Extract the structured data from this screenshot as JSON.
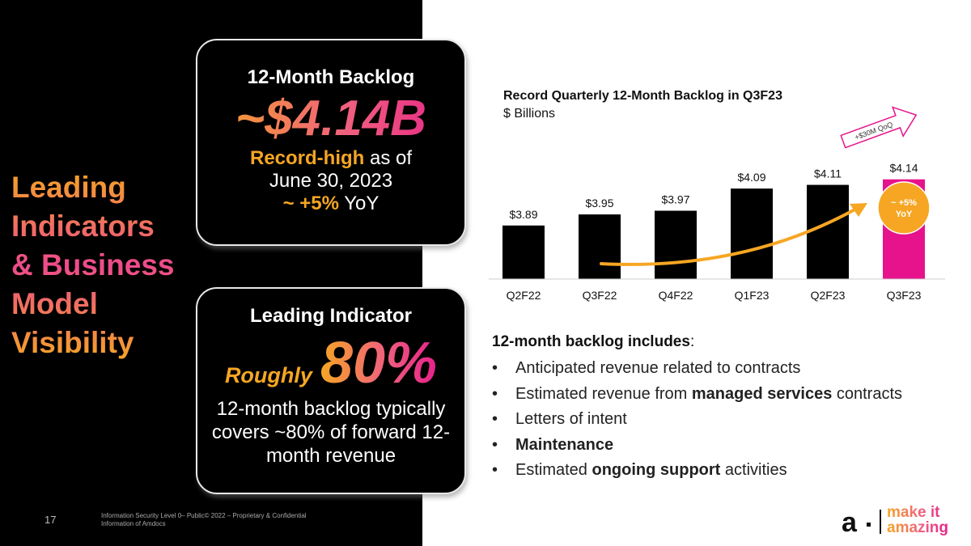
{
  "slide": {
    "title": "Leading\nIndicators\n& Business\nModel\nVisibility",
    "page_number": "17",
    "footer_note": "Information Security Level 0– Public© 2022 – Proprietary & Confidential Information of Amdocs"
  },
  "card_backlog": {
    "heading": "12-Month Backlog",
    "value": "~$4.14B",
    "record_high": "Record-high",
    "as_of": " as of",
    "date_line": "June 30, 2023",
    "yoy_prefix": "~ +5%",
    "yoy_suffix": " YoY"
  },
  "card_indicator": {
    "heading": "Leading Indicator",
    "roughly": "Roughly",
    "percent": "80%",
    "description": "12-month backlog typically covers ~80% of forward 12-month revenue"
  },
  "chart_data": {
    "type": "bar",
    "title": "Record Quarterly 12-Month Backlog in Q3F23",
    "subtitle": "$ Billions",
    "categories": [
      "Q2F22",
      "Q3F22",
      "Q4F22",
      "Q1F23",
      "Q2F23",
      "Q3F23"
    ],
    "values": [
      3.89,
      3.95,
      3.97,
      4.09,
      4.11,
      4.14
    ],
    "value_labels": [
      "$3.89",
      "$3.95",
      "$3.97",
      "$4.09",
      "$4.11",
      "$4.14"
    ],
    "ylim": [
      3.6,
      4.2
    ],
    "bar_colors": [
      "#000000",
      "#000000",
      "#000000",
      "#000000",
      "#000000",
      "#e6138c"
    ],
    "annotations": {
      "qoq_arrow": "+$30M QoQ",
      "yoy_circle_line1": "~ +5%",
      "yoy_circle_line2": "YoY"
    },
    "colors": {
      "arrow": "#f6a623",
      "circle": "#f6a623",
      "highlight": "#e6138c"
    }
  },
  "bullets": {
    "heading_bold": "12-month backlog includes",
    "heading_colon": ":",
    "items": [
      [
        {
          "t": "Anticipated revenue related to contracts",
          "b": false
        }
      ],
      [
        {
          "t": "Estimated revenue from ",
          "b": false
        },
        {
          "t": "managed services",
          "b": true
        },
        {
          "t": " contracts",
          "b": false
        }
      ],
      [
        {
          "t": "Letters of intent",
          "b": false
        }
      ],
      [
        {
          "t": "Maintenance",
          "b": true
        }
      ],
      [
        {
          "t": "Estimated ",
          "b": false
        },
        {
          "t": "ongoing support",
          "b": true
        },
        {
          "t": " activities",
          "b": false
        }
      ]
    ]
  },
  "logo": {
    "mark": "a",
    "text": "make it\namazing"
  }
}
